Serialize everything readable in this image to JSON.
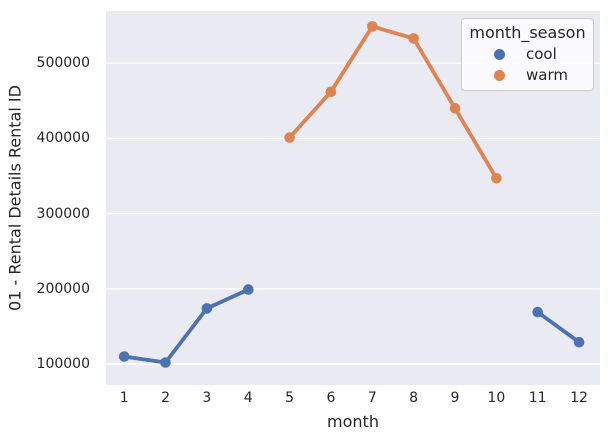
{
  "figure": {
    "background": "#ffffff",
    "plot_background": "#eaeaf2",
    "grid_color": "#ffffff",
    "text_color": "#262626"
  },
  "chart_data": {
    "type": "line",
    "title": "",
    "xlabel": "month",
    "ylabel": "01 - Rental Details Rental ID",
    "xticks": [
      1,
      2,
      3,
      4,
      5,
      6,
      7,
      8,
      9,
      10,
      11,
      12
    ],
    "yticks": [
      100000,
      200000,
      300000,
      400000,
      500000
    ],
    "xlim": [
      0.55,
      12.45
    ],
    "ylim": [
      72000,
      569000
    ],
    "grid": "horizontal-only",
    "legend": {
      "title": "month_season",
      "position": "upper-right"
    },
    "series": [
      {
        "name": "cool",
        "color": "#4c72b0",
        "segments": [
          {
            "x": [
              1,
              2,
              3,
              4
            ],
            "y": [
              110000,
              102000,
              174000,
              199000
            ]
          },
          {
            "x": [
              11,
              12
            ],
            "y": [
              169000,
              129000
            ]
          }
        ]
      },
      {
        "name": "warm",
        "color": "#dd8452",
        "segments": [
          {
            "x": [
              5,
              6,
              7,
              8,
              9,
              10
            ],
            "y": [
              401000,
              462000,
              549000,
              533000,
              440000,
              347000
            ]
          }
        ]
      }
    ]
  }
}
